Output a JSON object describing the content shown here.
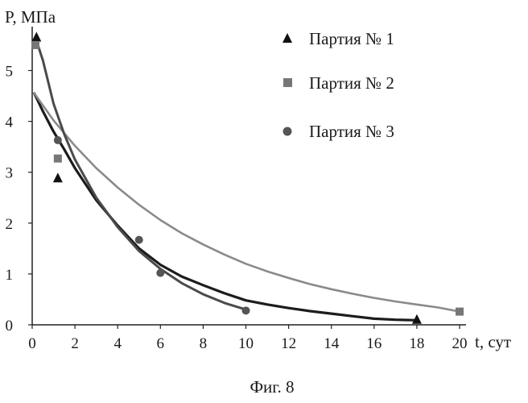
{
  "chart_data": {
    "type": "scatter",
    "ylabel": "P, МПа",
    "xlabel": "t, сут",
    "caption": "Фиг. 8",
    "xlim": [
      0,
      20
    ],
    "ylim": [
      0,
      5.8
    ],
    "xticks": [
      0,
      2,
      4,
      6,
      8,
      10,
      12,
      14,
      16,
      18,
      20
    ],
    "yticks": [
      0,
      1,
      2,
      3,
      4,
      5
    ],
    "grid": false,
    "legend_position": "top-right",
    "series": [
      {
        "name": "Партия № 1",
        "marker": "triangle",
        "color": "#111111",
        "points": [
          [
            0.2,
            5.65
          ],
          [
            1.2,
            2.88
          ],
          [
            18.0,
            0.1
          ]
        ],
        "fit_curve": [
          [
            0.1,
            4.55
          ],
          [
            0.5,
            4.2
          ],
          [
            1,
            3.8
          ],
          [
            1.5,
            3.45
          ],
          [
            2,
            3.08
          ],
          [
            3,
            2.45
          ],
          [
            4,
            1.95
          ],
          [
            5,
            1.5
          ],
          [
            6,
            1.18
          ],
          [
            7,
            0.95
          ],
          [
            8,
            0.78
          ],
          [
            9,
            0.62
          ],
          [
            10,
            0.48
          ],
          [
            11,
            0.4
          ],
          [
            12,
            0.33
          ],
          [
            13,
            0.27
          ],
          [
            14,
            0.22
          ],
          [
            15,
            0.17
          ],
          [
            16,
            0.12
          ],
          [
            17,
            0.1
          ],
          [
            18,
            0.09
          ]
        ]
      },
      {
        "name": "Партия № 2",
        "marker": "square",
        "color": "#777777",
        "points": [
          [
            0.15,
            5.5
          ],
          [
            1.2,
            3.27
          ],
          [
            20.0,
            0.26
          ]
        ],
        "fit_curve": [
          [
            0.1,
            4.55
          ],
          [
            1,
            4.02
          ],
          [
            2,
            3.52
          ],
          [
            3,
            3.08
          ],
          [
            4,
            2.7
          ],
          [
            5,
            2.36
          ],
          [
            6,
            2.06
          ],
          [
            7,
            1.8
          ],
          [
            8,
            1.58
          ],
          [
            9,
            1.38
          ],
          [
            10,
            1.2
          ],
          [
            11,
            1.05
          ],
          [
            12,
            0.92
          ],
          [
            13,
            0.8
          ],
          [
            14,
            0.7
          ],
          [
            15,
            0.61
          ],
          [
            16,
            0.53
          ],
          [
            17,
            0.46
          ],
          [
            18,
            0.4
          ],
          [
            19,
            0.34
          ],
          [
            20,
            0.26
          ]
        ]
      },
      {
        "name": "Партия № 3",
        "marker": "circle",
        "color": "#555555",
        "points": [
          [
            1.2,
            3.63
          ],
          [
            5.0,
            1.67
          ],
          [
            6.0,
            1.02
          ],
          [
            10.0,
            0.28
          ]
        ],
        "fit_curve": [
          [
            0.15,
            5.65
          ],
          [
            0.5,
            5.2
          ],
          [
            1,
            4.35
          ],
          [
            1.5,
            3.75
          ],
          [
            2,
            3.25
          ],
          [
            3,
            2.5
          ],
          [
            4,
            1.92
          ],
          [
            5,
            1.45
          ],
          [
            6,
            1.1
          ],
          [
            7,
            0.82
          ],
          [
            8,
            0.6
          ],
          [
            9,
            0.43
          ],
          [
            10,
            0.3
          ]
        ]
      }
    ]
  }
}
